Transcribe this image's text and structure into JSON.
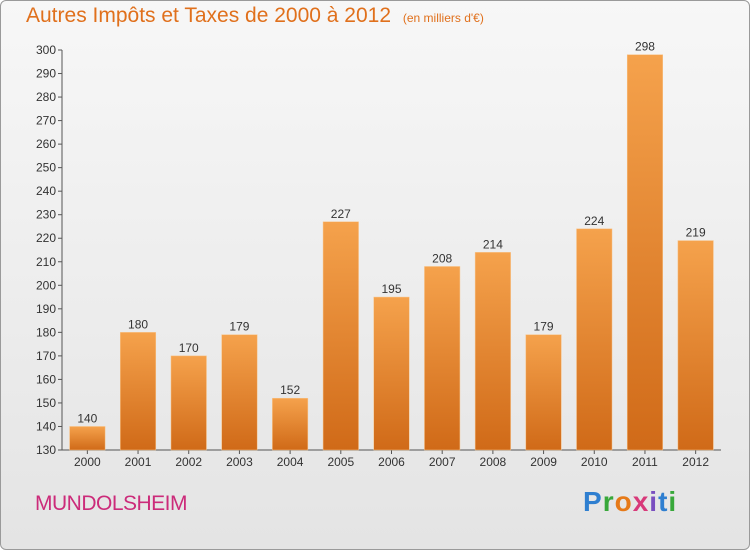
{
  "header": {
    "title": "Autres Impôts et Taxes de 2000 à 2012",
    "unit": "(en milliers d'€)"
  },
  "footer": {
    "commune": "MUNDOLSHEIM",
    "logo_text": "Proxiti"
  },
  "colors": {
    "bar_light": "#f5a24c",
    "bar_dark": "#d06a18",
    "title": "#e0701c",
    "commune": "#cc2b7a"
  },
  "chart_data": {
    "type": "bar",
    "title": "Autres Impôts et Taxes de 2000 à 2012",
    "subtitle": "(en milliers d'€)",
    "categories": [
      "2000",
      "2001",
      "2002",
      "2003",
      "2004",
      "2005",
      "2006",
      "2007",
      "2008",
      "2009",
      "2010",
      "2011",
      "2012"
    ],
    "values": [
      140,
      180,
      170,
      179,
      152,
      227,
      195,
      208,
      214,
      179,
      224,
      298,
      219
    ],
    "ylim": [
      130,
      300
    ],
    "yticks": [
      130,
      140,
      150,
      160,
      170,
      180,
      190,
      200,
      210,
      220,
      230,
      240,
      250,
      260,
      270,
      280,
      290,
      300
    ],
    "grid": false,
    "legend": "none"
  }
}
